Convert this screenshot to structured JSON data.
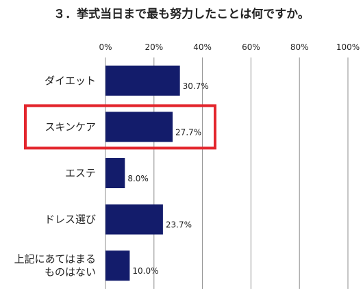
{
  "chart_data": {
    "type": "bar",
    "orientation": "horizontal",
    "title": "３．挙式当日まで最も努力したことは何ですか。",
    "categories": [
      [
        "ダイエット"
      ],
      [
        "スキンケア"
      ],
      [
        "エステ"
      ],
      [
        "ドレス選び"
      ],
      [
        "上記にあてはまる",
        "ものはない"
      ]
    ],
    "values": [
      30.7,
      27.7,
      8.0,
      23.7,
      10.0
    ],
    "value_labels": [
      "30.7%",
      "27.7%",
      "8.0%",
      "23.7%",
      "10.0%"
    ],
    "xlim": [
      0,
      100
    ],
    "ticks": [
      0,
      20,
      40,
      60,
      80,
      100
    ],
    "tick_labels": [
      "0%",
      "20%",
      "40%",
      "60%",
      "80%",
      "100%"
    ],
    "axis_position": "top",
    "grid": true,
    "highlighted_category": 1,
    "colors": {
      "bar": "#131c6b",
      "highlight": "#e3262d",
      "grid": "#8c8c8c"
    }
  }
}
